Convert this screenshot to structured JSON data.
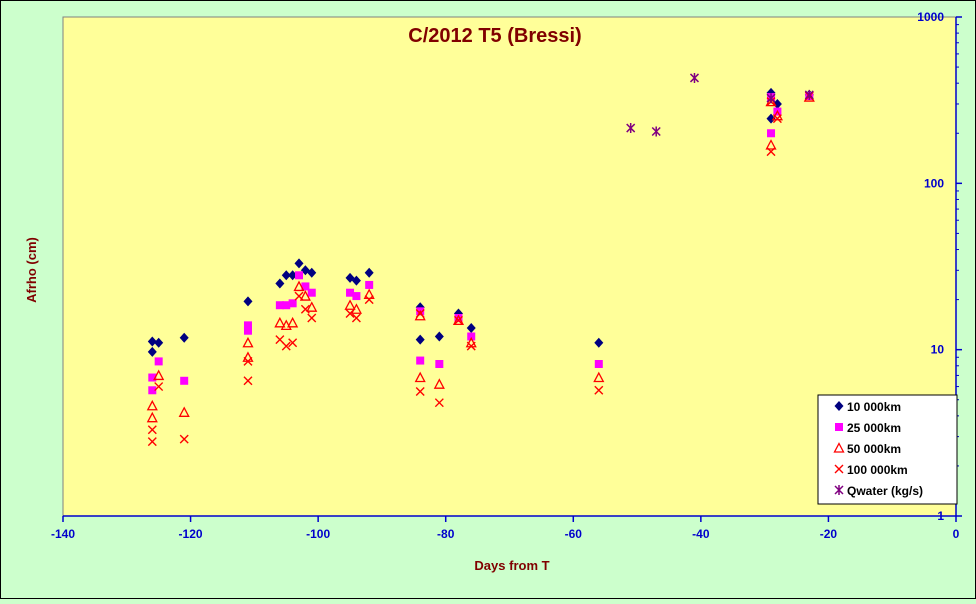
{
  "chart_data": {
    "type": "scatter",
    "title": "C/2012 T5 (Bressi)",
    "xlabel": "Days from T",
    "ylabel": "Afrho (cm)",
    "xlim": [
      -140,
      0
    ],
    "ylim": [
      1,
      1000
    ],
    "y_scale": "log",
    "grid": false,
    "legend_position": "bottom-right",
    "x_ticks": [
      "-140",
      "-120",
      "-100",
      "-80",
      "-60",
      "-40",
      "-20",
      "0"
    ],
    "y_ticks": [
      "1",
      "10",
      "100",
      "1000"
    ],
    "colors": {
      "background": "#ccffcc",
      "plot_area": "#ffff99",
      "title": "#800000",
      "axis_title": "#800000",
      "tick_labels": "#0000cc",
      "axis_line": "#0000cc"
    },
    "series": [
      {
        "name": "10 000km",
        "marker": "diamond",
        "color": "#000080",
        "points": [
          {
            "x": -126,
            "y": 9.7
          },
          {
            "x": -126,
            "y": 11.2
          },
          {
            "x": -125,
            "y": 11.0
          },
          {
            "x": -121,
            "y": 11.8
          },
          {
            "x": -111,
            "y": 19.5
          },
          {
            "x": -106,
            "y": 25
          },
          {
            "x": -105,
            "y": 28
          },
          {
            "x": -104,
            "y": 28
          },
          {
            "x": -103,
            "y": 33
          },
          {
            "x": -102,
            "y": 30
          },
          {
            "x": -101,
            "y": 29
          },
          {
            "x": -95,
            "y": 27
          },
          {
            "x": -94,
            "y": 26
          },
          {
            "x": -92,
            "y": 29
          },
          {
            "x": -84,
            "y": 18
          },
          {
            "x": -84,
            "y": 11.5
          },
          {
            "x": -81,
            "y": 12
          },
          {
            "x": -78,
            "y": 16.5
          },
          {
            "x": -76,
            "y": 13.5
          },
          {
            "x": -56,
            "y": 11
          },
          {
            "x": -29,
            "y": 350
          },
          {
            "x": -29,
            "y": 245
          },
          {
            "x": -28,
            "y": 300
          },
          {
            "x": -23,
            "y": 340
          }
        ]
      },
      {
        "name": "25 000km",
        "marker": "square",
        "color": "#ff00ff",
        "points": [
          {
            "x": -126,
            "y": 6.8
          },
          {
            "x": -126,
            "y": 5.7
          },
          {
            "x": -125,
            "y": 8.5
          },
          {
            "x": -121,
            "y": 6.5
          },
          {
            "x": -111,
            "y": 14
          },
          {
            "x": -111,
            "y": 13
          },
          {
            "x": -106,
            "y": 18.5
          },
          {
            "x": -105,
            "y": 18.5
          },
          {
            "x": -104,
            "y": 19
          },
          {
            "x": -103,
            "y": 28
          },
          {
            "x": -102,
            "y": 24
          },
          {
            "x": -101,
            "y": 22
          },
          {
            "x": -95,
            "y": 22
          },
          {
            "x": -94,
            "y": 21
          },
          {
            "x": -92,
            "y": 24.5
          },
          {
            "x": -84,
            "y": 17
          },
          {
            "x": -84,
            "y": 8.6
          },
          {
            "x": -81,
            "y": 8.2
          },
          {
            "x": -78,
            "y": 15.5
          },
          {
            "x": -76,
            "y": 12
          },
          {
            "x": -56,
            "y": 8.2
          },
          {
            "x": -29,
            "y": 330
          },
          {
            "x": -29,
            "y": 200
          },
          {
            "x": -28,
            "y": 270
          },
          {
            "x": -23,
            "y": 335
          }
        ]
      },
      {
        "name": "50 000km",
        "marker": "triangle",
        "color": "#ff0000",
        "points": [
          {
            "x": -126,
            "y": 4.6
          },
          {
            "x": -126,
            "y": 3.9
          },
          {
            "x": -125,
            "y": 7.0
          },
          {
            "x": -121,
            "y": 4.2
          },
          {
            "x": -111,
            "y": 11
          },
          {
            "x": -111,
            "y": 9
          },
          {
            "x": -106,
            "y": 14.5
          },
          {
            "x": -105,
            "y": 14
          },
          {
            "x": -104,
            "y": 14.5
          },
          {
            "x": -103,
            "y": 24
          },
          {
            "x": -102,
            "y": 21
          },
          {
            "x": -101,
            "y": 18
          },
          {
            "x": -95,
            "y": 18.5
          },
          {
            "x": -94,
            "y": 17.5
          },
          {
            "x": -92,
            "y": 21.5
          },
          {
            "x": -84,
            "y": 16
          },
          {
            "x": -84,
            "y": 6.8
          },
          {
            "x": -81,
            "y": 6.2
          },
          {
            "x": -78,
            "y": 15
          },
          {
            "x": -76,
            "y": 11
          },
          {
            "x": -56,
            "y": 6.8
          },
          {
            "x": -29,
            "y": 310
          },
          {
            "x": -29,
            "y": 170
          },
          {
            "x": -28,
            "y": 255
          },
          {
            "x": -23,
            "y": 330
          }
        ]
      },
      {
        "name": "100 000km",
        "marker": "x",
        "color": "#ff0000",
        "points": [
          {
            "x": -126,
            "y": 3.3
          },
          {
            "x": -126,
            "y": 2.8
          },
          {
            "x": -125,
            "y": 6.0
          },
          {
            "x": -121,
            "y": 2.9
          },
          {
            "x": -111,
            "y": 8.5
          },
          {
            "x": -111,
            "y": 6.5
          },
          {
            "x": -106,
            "y": 11.5
          },
          {
            "x": -105,
            "y": 10.5
          },
          {
            "x": -104,
            "y": 11
          },
          {
            "x": -103,
            "y": 21
          },
          {
            "x": -102,
            "y": 17.5
          },
          {
            "x": -101,
            "y": 15.5
          },
          {
            "x": -95,
            "y": 16.5
          },
          {
            "x": -94,
            "y": 15.5
          },
          {
            "x": -92,
            "y": 20
          },
          {
            "x": -84,
            "y": 16.5
          },
          {
            "x": -84,
            "y": 5.6
          },
          {
            "x": -81,
            "y": 4.8
          },
          {
            "x": -78,
            "y": 15
          },
          {
            "x": -76,
            "y": 10.5
          },
          {
            "x": -56,
            "y": 5.7
          },
          {
            "x": -29,
            "y": 310
          },
          {
            "x": -29,
            "y": 155
          },
          {
            "x": -28,
            "y": 245
          },
          {
            "x": -23,
            "y": 335
          }
        ]
      },
      {
        "name": "Qwater (kg/s)",
        "marker": "asterisk",
        "color": "#800080",
        "points": [
          {
            "x": -51,
            "y": 215
          },
          {
            "x": -47,
            "y": 205
          },
          {
            "x": -41,
            "y": 430
          },
          {
            "x": -29,
            "y": 325
          },
          {
            "x": -23,
            "y": 340
          }
        ]
      }
    ]
  }
}
